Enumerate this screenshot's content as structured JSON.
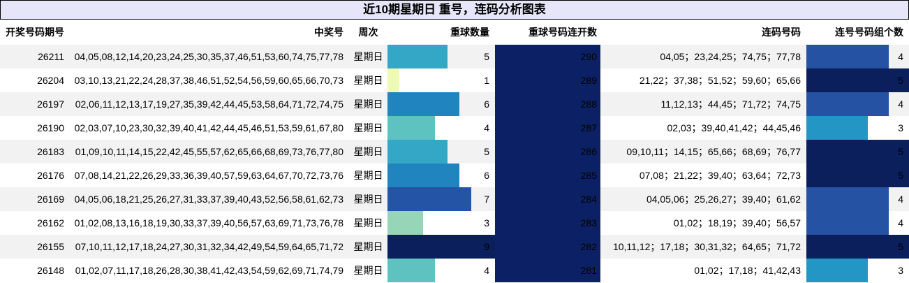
{
  "title": "近10期星期日 重号，连码分析图表",
  "headers": {
    "issue": "开奖号码期号",
    "numbers": "中奖号",
    "weekday": "周次",
    "repeat_count": "重球数量",
    "repeat_streak": "重球号码连开数",
    "consecutive": "连码号码",
    "group_count": "连号号码组个数"
  },
  "max_repeat": 9,
  "max_group": 5,
  "rows": [
    {
      "issue": "26211",
      "numbers": "04,05,08,12,14,20,23,24,25,30,35,37,46,51,53,60,74,75,77,78",
      "weekday": "星期日",
      "repeat_count": 5,
      "repeat_color": "#34a7c6",
      "repeat_streak": 290,
      "consecutive": "04,05；23,24,25；74,75；77,78",
      "group_count": 4,
      "group_color": "#2552a3"
    },
    {
      "issue": "26204",
      "numbers": "03,10,13,21,22,24,28,37,38,46,51,52,54,56,59,60,65,66,70,73",
      "weekday": "星期日",
      "repeat_count": 1,
      "repeat_color": "#eefab4",
      "repeat_streak": 289,
      "consecutive": "21,22；37,38；51,52；59,60；65,66",
      "group_count": 5,
      "group_color": "#0a1f5c"
    },
    {
      "issue": "26197",
      "numbers": "02,06,11,12,13,17,19,27,35,39,42,44,45,53,58,64,71,72,74,75",
      "weekday": "星期日",
      "repeat_count": 6,
      "repeat_color": "#2084be",
      "repeat_streak": 288,
      "consecutive": "11,12,13；44,45；71,72；74,75",
      "group_count": 4,
      "group_color": "#2552a3"
    },
    {
      "issue": "26190",
      "numbers": "02,03,07,10,23,30,32,39,40,41,42,44,45,46,51,53,59,61,67,80",
      "weekday": "星期日",
      "repeat_count": 4,
      "repeat_color": "#5ec2c0",
      "repeat_streak": 287,
      "consecutive": "02,03；39,40,41,42；44,45,46",
      "group_count": 3,
      "group_color": "#2496c5"
    },
    {
      "issue": "26183",
      "numbers": "01,09,10,11,14,15,22,42,45,55,57,62,65,66,68,69,73,76,77,80",
      "weekday": "星期日",
      "repeat_count": 5,
      "repeat_color": "#34a7c6",
      "repeat_streak": 286,
      "consecutive": "09,10,11；14,15；65,66；68,69；76,77",
      "group_count": 5,
      "group_color": "#0a1f5c"
    },
    {
      "issue": "26176",
      "numbers": "07,08,14,21,22,26,29,33,36,39,40,57,59,63,64,67,70,72,73,76",
      "weekday": "星期日",
      "repeat_count": 6,
      "repeat_color": "#2084be",
      "repeat_streak": 285,
      "consecutive": "07,08；21,22；39,40；63,64；72,73",
      "group_count": 5,
      "group_color": "#0a1f5c"
    },
    {
      "issue": "26169",
      "numbers": "04,05,06,18,21,25,26,27,31,33,37,39,40,43,52,56,58,61,62,73",
      "weekday": "星期日",
      "repeat_count": 7,
      "repeat_color": "#2454a5",
      "repeat_streak": 284,
      "consecutive": "04,05,06；25,26,27；39,40；61,62",
      "group_count": 4,
      "group_color": "#2552a3"
    },
    {
      "issue": "26162",
      "numbers": "01,02,08,13,16,18,19,30,33,37,39,40,56,57,63,69,71,73,76,78",
      "weekday": "星期日",
      "repeat_count": 3,
      "repeat_color": "#97d5b9",
      "repeat_streak": 283,
      "consecutive": "01,02；18,19；39,40；56,57",
      "group_count": 4,
      "group_color": "#2552a3"
    },
    {
      "issue": "26155",
      "numbers": "07,10,11,12,17,18,24,27,30,31,32,34,42,49,54,59,64,65,71,72",
      "weekday": "星期日",
      "repeat_count": 9,
      "repeat_color": "#0a1f5c",
      "repeat_streak": 282,
      "consecutive": "10,11,12；17,18；30,31,32；64,65；71,72",
      "group_count": 5,
      "group_color": "#0a1f5c"
    },
    {
      "issue": "26148",
      "numbers": "01,02,07,11,17,18,26,28,30,38,41,42,43,54,59,62,69,71,74,79",
      "weekday": "星期日",
      "repeat_count": 4,
      "repeat_color": "#5ec2c0",
      "repeat_streak": 281,
      "consecutive": "01,02；17,18；41,42,43",
      "group_count": 3,
      "group_color": "#2496c5"
    }
  ],
  "streak_color": "#0c2165"
}
